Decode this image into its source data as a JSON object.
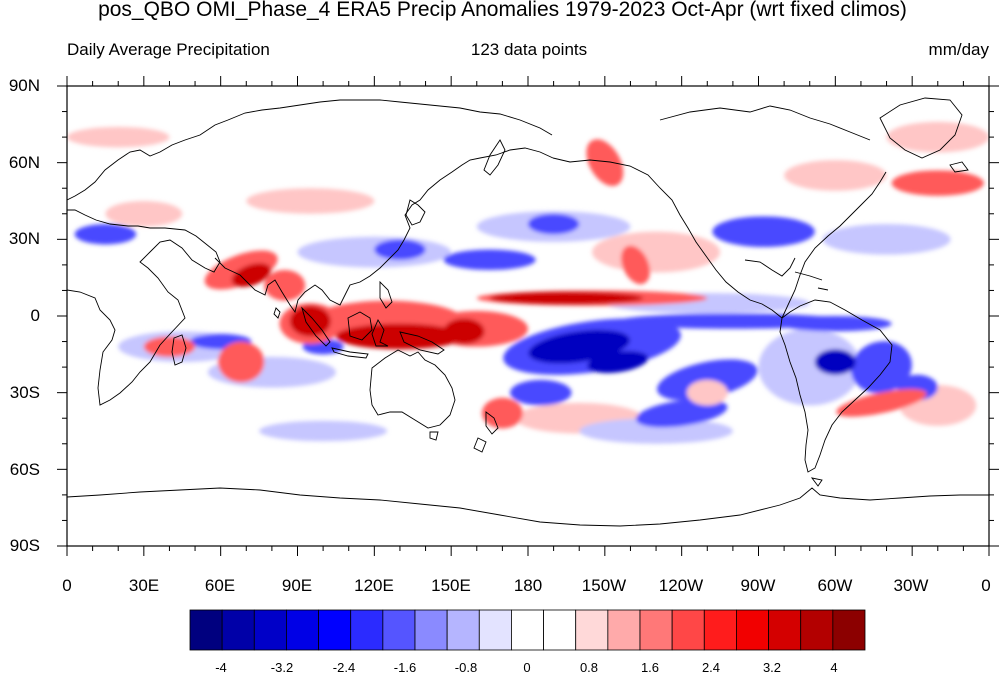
{
  "title": "pos_QBO OMI_Phase_4 ERA5 Precip Anomalies 1979-2023 Oct-Apr (wrt fixed climos)",
  "subtitle_left": "Daily Average Precipitation",
  "subtitle_center": "123 data points",
  "subtitle_right": "mm/day",
  "lat_labels": [
    "90N",
    "60N",
    "30N",
    "0",
    "30S",
    "60S",
    "90S"
  ],
  "lon_labels": [
    "0",
    "30E",
    "60E",
    "90E",
    "120E",
    "150E",
    "180",
    "150W",
    "120W",
    "90W",
    "60W",
    "30W",
    "0"
  ],
  "colorbar": {
    "labels": [
      "-4",
      "-3.2",
      "-2.4",
      "-1.6",
      "-0.8",
      "0",
      "0.8",
      "1.6",
      "2.4",
      "3.2",
      "4"
    ],
    "colors": [
      "#00007f",
      "#0000a8",
      "#0000c8",
      "#0000e6",
      "#0000ff",
      "#2b2bff",
      "#5555ff",
      "#8a8aff",
      "#b5b5ff",
      "#e3e3ff",
      "#ffffff",
      "#ffffff",
      "#ffd9d9",
      "#ffaaaa",
      "#ff7878",
      "#ff4747",
      "#ff1c1c",
      "#f20000",
      "#d40000",
      "#b30000",
      "#8c0000"
    ]
  },
  "map_data": {
    "colors": {
      "strong_pos": "#cc0000",
      "pos": "#ff5a5a",
      "weak_pos": "#ffc6c6",
      "strong_neg": "#0000c0",
      "neg": "#4a4aff",
      "weak_neg": "#c6c6ff"
    }
  }
}
